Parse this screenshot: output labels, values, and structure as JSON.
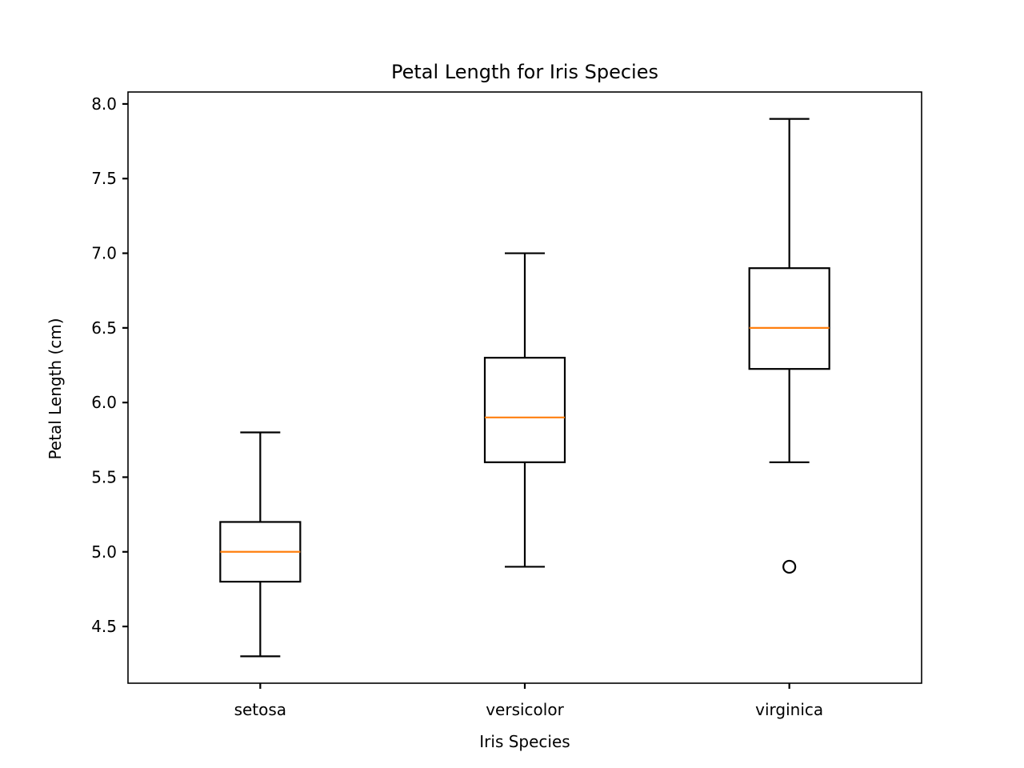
{
  "chart_data": {
    "type": "box",
    "title": "Petal Length for Iris Species",
    "xlabel": "Iris Species",
    "ylabel": "Petal Length (cm)",
    "ylim": [
      4.12,
      8.08
    ],
    "yticks": [
      "4.5",
      "5.0",
      "5.5",
      "6.0",
      "6.5",
      "7.0",
      "7.5",
      "8.0"
    ],
    "categories": [
      "setosa",
      "versicolor",
      "virginica"
    ],
    "boxes": [
      {
        "category": "setosa",
        "whisker_low": 4.3,
        "q1": 4.8,
        "median": 5.0,
        "q3": 5.2,
        "whisker_high": 5.8,
        "outliers": []
      },
      {
        "category": "versicolor",
        "whisker_low": 4.9,
        "q1": 5.6,
        "median": 5.9,
        "q3": 6.3,
        "whisker_high": 7.0,
        "outliers": []
      },
      {
        "category": "virginica",
        "whisker_low": 5.6,
        "q1": 6.225,
        "median": 6.5,
        "q3": 6.9,
        "whisker_high": 7.9,
        "outliers": [
          4.9
        ]
      }
    ],
    "grid": false,
    "colors": {
      "box": "#000000",
      "median": "#ff7f0e"
    }
  }
}
